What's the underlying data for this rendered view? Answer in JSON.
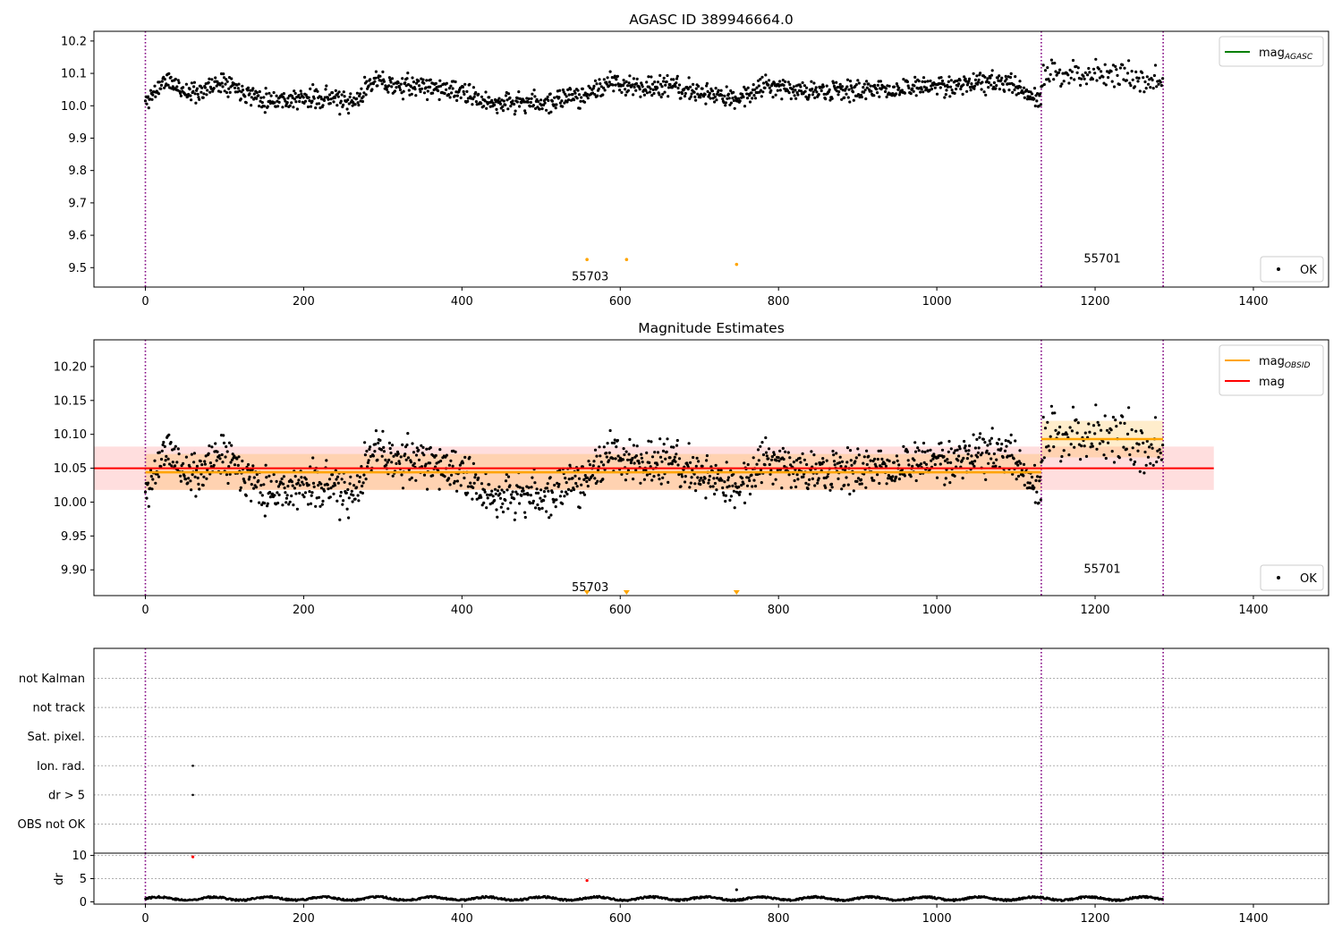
{
  "colors": {
    "dots": "#000000",
    "vlines": "#800080",
    "mag_agasc": "#008000",
    "mag_obsid": "#ffa500",
    "mag": "#ff0000",
    "flag_dot": "#000000",
    "suspect": "#ffa500",
    "dr_outlier": "#ff0000"
  },
  "chart_data": [
    {
      "type": "scatter",
      "title": "AGASC ID 389946664.0",
      "xlim": [
        -65,
        1495
      ],
      "ylim": [
        9.44,
        10.23
      ],
      "xticks": [
        0,
        200,
        400,
        600,
        800,
        1000,
        1200,
        1400
      ],
      "yticks": [
        9.5,
        9.6,
        9.7,
        9.8,
        9.9,
        10.0,
        10.1,
        10.2
      ],
      "ytick_labels": [
        "9.5",
        "9.6",
        "9.7",
        "9.8",
        "9.9",
        "10.0",
        "10.1",
        "10.2"
      ],
      "vlines": [
        0,
        1132,
        1286
      ],
      "legend": [
        {
          "label": "mag",
          "subscript": "AGASC",
          "color": "#008000"
        }
      ],
      "legend_dots": [
        {
          "label": "OK"
        }
      ],
      "legend_positions": [
        "upper right",
        "lower right"
      ],
      "obsid_labels": [
        {
          "text": "55703",
          "x": 562,
          "y": 9.475
        },
        {
          "text": "55701",
          "x": 1209,
          "y": 9.53
        }
      ],
      "suspect_points": [
        {
          "x": 558,
          "y": 9.525
        },
        {
          "x": 608,
          "y": 9.525
        },
        {
          "x": 747,
          "y": 9.51
        }
      ],
      "series": [
        {
          "x_start": 0,
          "x_end": 1132,
          "knots": [
            [
              0,
              10.01
            ],
            [
              25,
              10.08
            ],
            [
              55,
              10.04
            ],
            [
              75,
              10.05
            ],
            [
              100,
              10.08
            ],
            [
              120,
              10.05
            ],
            [
              150,
              10.02
            ],
            [
              175,
              10.02
            ],
            [
              200,
              10.02
            ],
            [
              235,
              10.03
            ],
            [
              255,
              10.0
            ],
            [
              270,
              10.02
            ],
            [
              285,
              10.08
            ],
            [
              320,
              10.06
            ],
            [
              360,
              10.06
            ],
            [
              400,
              10.04
            ],
            [
              430,
              10.01
            ],
            [
              470,
              10.01
            ],
            [
              510,
              10.01
            ],
            [
              560,
              10.04
            ],
            [
              590,
              10.07
            ],
            [
              620,
              10.06
            ],
            [
              660,
              10.06
            ],
            [
              700,
              10.04
            ],
            [
              750,
              10.02
            ],
            [
              785,
              10.07
            ],
            [
              820,
              10.05
            ],
            [
              860,
              10.04
            ],
            [
              900,
              10.05
            ],
            [
              950,
              10.05
            ],
            [
              1000,
              10.06
            ],
            [
              1040,
              10.07
            ],
            [
              1090,
              10.07
            ],
            [
              1132,
              10.01
            ]
          ],
          "noise": 0.016,
          "step": 0.85,
          "seed": 11
        },
        {
          "x_start": 1132,
          "x_end": 1286,
          "knots": [
            [
              1132,
              10.09
            ],
            [
              1180,
              10.1
            ],
            [
              1230,
              10.1
            ],
            [
              1286,
              10.07
            ]
          ],
          "noise": 0.022,
          "step": 1.3,
          "seed": 23
        }
      ]
    },
    {
      "type": "scatter",
      "title": "Magnitude Estimates",
      "xlim": [
        -65,
        1495
      ],
      "ylim": [
        9.862,
        10.2395
      ],
      "xticks": [
        0,
        200,
        400,
        600,
        800,
        1000,
        1200,
        1400
      ],
      "yticks": [
        9.9,
        9.95,
        10.0,
        10.05,
        10.1,
        10.15,
        10.2
      ],
      "ytick_labels": [
        "9.90",
        "9.95",
        "10.00",
        "10.05",
        "10.10",
        "10.15",
        "10.20"
      ],
      "vlines": [
        0,
        1132,
        1286
      ],
      "legend": [
        {
          "label": "mag",
          "subscript": "OBSID",
          "color": "#ffa500"
        },
        {
          "label": "mag",
          "subscript": "",
          "color": "#ff0000"
        }
      ],
      "legend_dots": [
        {
          "label": "OK"
        }
      ],
      "legend_positions": [
        "upper right",
        "lower right"
      ],
      "mag_line": {
        "value": 10.05,
        "band": [
          10.018,
          10.082
        ],
        "x_range": [
          -65,
          1350
        ]
      },
      "obsid_lines": [
        {
          "x_range": [
            0,
            1132
          ],
          "value": 10.044,
          "band": [
            10.018,
            10.071
          ]
        },
        {
          "x_range": [
            1132,
            1286
          ],
          "value": 10.093,
          "band": [
            10.066,
            10.12
          ]
        }
      ],
      "obsid_labels": [
        {
          "text": "55703",
          "x": 562,
          "y": 9.875
        },
        {
          "text": "55701",
          "x": 1209,
          "y": 9.902
        }
      ],
      "suspect_markers": [
        558,
        608,
        747
      ]
    },
    {
      "type": "scatter",
      "categories": [
        "OBS not OK",
        "dr > 5",
        "Ion. rad.",
        "Sat. pixel.",
        "not track",
        "not Kalman"
      ],
      "xlim": [
        -65,
        1495
      ],
      "vlines": [
        0,
        1132,
        1286
      ],
      "flag_points": [
        {
          "category": "Ion. rad.",
          "x": 60
        },
        {
          "category": "dr > 5",
          "x": 60
        }
      ]
    },
    {
      "type": "scatter",
      "ylabel": "dr",
      "xlim": [
        -65,
        1495
      ],
      "ylim": [
        -0.5,
        10.5
      ],
      "xticks": [
        0,
        200,
        400,
        600,
        800,
        1000,
        1200,
        1400
      ],
      "yticks": [
        0,
        5,
        10
      ],
      "vlines": [
        0,
        1132,
        1286
      ],
      "outliers": [
        {
          "x": 60,
          "y": 9.7
        },
        {
          "x": 558,
          "y": 4.6
        },
        {
          "x": 747,
          "y": 2.6
        }
      ]
    }
  ]
}
